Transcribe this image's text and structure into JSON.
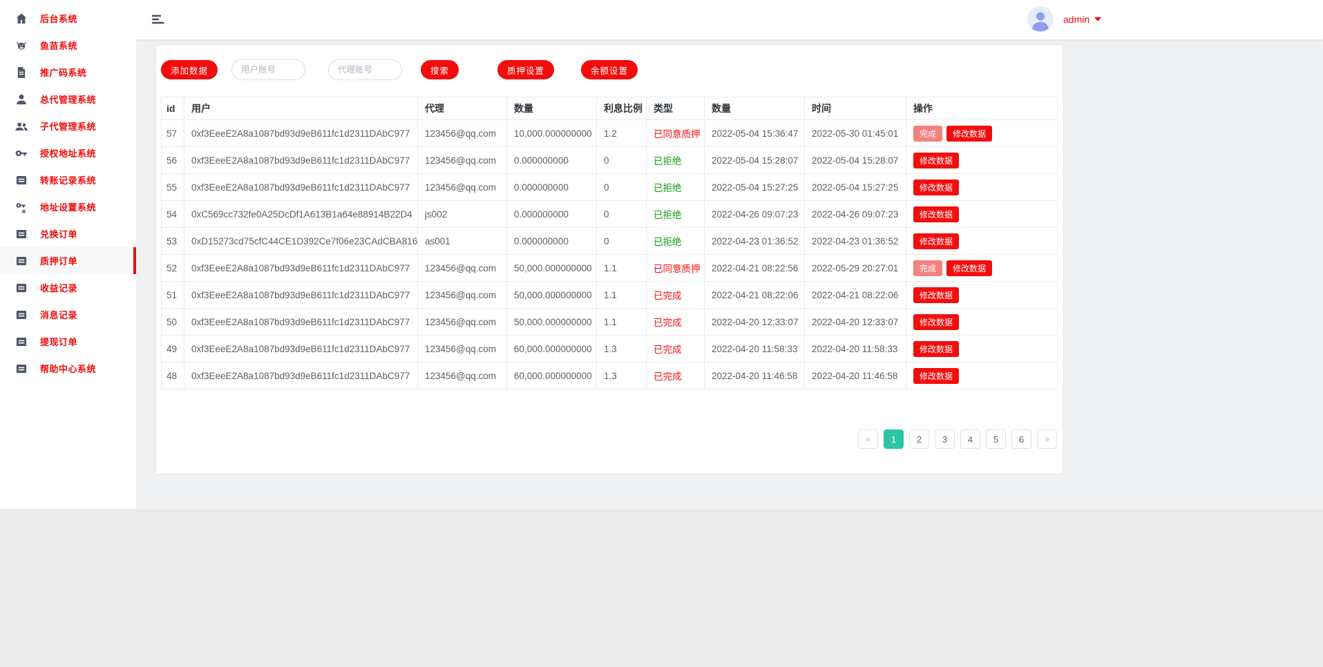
{
  "colors": {
    "accent_red": "#f40b0b",
    "status_red": "#fb0e0e",
    "status_green": "#0da00d",
    "pagination_active_teal": "#2cc5a3",
    "done_button_pink": "#f58080"
  },
  "sidebar": {
    "items": [
      {
        "label": "后台系统",
        "icon": "home-icon",
        "active": false
      },
      {
        "label": "鱼苗系统",
        "icon": "cow-icon",
        "active": false
      },
      {
        "label": "推广码系统",
        "icon": "document-icon",
        "active": false
      },
      {
        "label": "总代管理系统",
        "icon": "person-icon",
        "active": false
      },
      {
        "label": "子代管理系统",
        "icon": "people-icon",
        "active": false
      },
      {
        "label": "授权地址系统",
        "icon": "key-icon",
        "active": false
      },
      {
        "label": "转账记录系统",
        "icon": "list-icon",
        "active": false
      },
      {
        "label": "地址设置系统",
        "icon": "key-x-icon",
        "active": false
      },
      {
        "label": "兑换订单",
        "icon": "list-icon",
        "active": false
      },
      {
        "label": "质押订单",
        "icon": "list-icon",
        "active": true
      },
      {
        "label": "收益记录",
        "icon": "list-icon",
        "active": false
      },
      {
        "label": "消息记录",
        "icon": "list-icon",
        "active": false
      },
      {
        "label": "提现订单",
        "icon": "list-icon",
        "active": false
      },
      {
        "label": "帮助中心系统",
        "icon": "list-icon",
        "active": false
      }
    ]
  },
  "header": {
    "username": "admin"
  },
  "toolbar": {
    "add_button": "添加数据",
    "user_input_placeholder": "用户账号",
    "agent_input_placeholder": "代理账号",
    "search_button": "搜索",
    "pledge_settings_button": "质押设置",
    "balance_settings_button": "余额设置"
  },
  "table": {
    "columns": [
      "id",
      "用户",
      "代理",
      "数量",
      "利息比例",
      "类型",
      "数量",
      "时间",
      "操作"
    ],
    "action_labels": {
      "done": "完成",
      "edit": "修改数据"
    },
    "rows": [
      {
        "id": "57",
        "user": "0xf3EeeE2A8a1087bd93d9eB611fc1d2311DAbC977",
        "agent": "123456@qq.com",
        "amount": "10,000.000000000",
        "ratio": "1.2",
        "type": "已同意质押",
        "type_color": "red",
        "amount2": "2022-05-04 15:36:47",
        "time": "2022-05-30 01:45:01",
        "actions": [
          "done",
          "edit"
        ]
      },
      {
        "id": "56",
        "user": "0xf3EeeE2A8a1087bd93d9eB611fc1d2311DAbC977",
        "agent": "123456@qq.com",
        "amount": "0.000000000",
        "ratio": "0",
        "type": "已拒绝",
        "type_color": "green",
        "amount2": "2022-05-04 15:28:07",
        "time": "2022-05-04 15:28:07",
        "actions": [
          "edit"
        ]
      },
      {
        "id": "55",
        "user": "0xf3EeeE2A8a1087bd93d9eB611fc1d2311DAbC977",
        "agent": "123456@qq.com",
        "amount": "0.000000000",
        "ratio": "0",
        "type": "已拒绝",
        "type_color": "green",
        "amount2": "2022-05-04 15:27:25",
        "time": "2022-05-04 15:27:25",
        "actions": [
          "edit"
        ]
      },
      {
        "id": "54",
        "user": "0xC569cc732fe0A25DcDf1A613B1a64e88914B22D4",
        "agent": "js002",
        "amount": "0.000000000",
        "ratio": "0",
        "type": "已拒绝",
        "type_color": "green",
        "amount2": "2022-04-26 09:07:23",
        "time": "2022-04-26 09:07:23",
        "actions": [
          "edit"
        ]
      },
      {
        "id": "53",
        "user": "0xD15273cd75cfC44CE1D392Ce7f06e23CAdCBA816",
        "agent": "as001",
        "amount": "0.000000000",
        "ratio": "0",
        "type": "已拒绝",
        "type_color": "green",
        "amount2": "2022-04-23 01:36:52",
        "time": "2022-04-23 01:36:52",
        "actions": [
          "edit"
        ]
      },
      {
        "id": "52",
        "user": "0xf3EeeE2A8a1087bd93d9eB611fc1d2311DAbC977",
        "agent": "123456@qq.com",
        "amount": "50,000.000000000",
        "ratio": "1.1",
        "type": "已同意质押",
        "type_color": "red",
        "amount2": "2022-04-21 08:22:56",
        "time": "2022-05-29 20:27:01",
        "actions": [
          "done",
          "edit"
        ]
      },
      {
        "id": "51",
        "user": "0xf3EeeE2A8a1087bd93d9eB611fc1d2311DAbC977",
        "agent": "123456@qq.com",
        "amount": "50,000.000000000",
        "ratio": "1.1",
        "type": "已完成",
        "type_color": "red",
        "amount2": "2022-04-21 08:22:06",
        "time": "2022-04-21 08:22:06",
        "actions": [
          "edit"
        ]
      },
      {
        "id": "50",
        "user": "0xf3EeeE2A8a1087bd93d9eB611fc1d2311DAbC977",
        "agent": "123456@qq.com",
        "amount": "50,000.000000000",
        "ratio": "1.1",
        "type": "已完成",
        "type_color": "red",
        "amount2": "2022-04-20 12:33:07",
        "time": "2022-04-20 12:33:07",
        "actions": [
          "edit"
        ]
      },
      {
        "id": "49",
        "user": "0xf3EeeE2A8a1087bd93d9eB611fc1d2311DAbC977",
        "agent": "123456@qq.com",
        "amount": "60,000.000000000",
        "ratio": "1.3",
        "type": "已完成",
        "type_color": "red",
        "amount2": "2022-04-20 11:58:33",
        "time": "2022-04-20 11:58:33",
        "actions": [
          "edit"
        ]
      },
      {
        "id": "48",
        "user": "0xf3EeeE2A8a1087bd93d9eB611fc1d2311DAbC977",
        "agent": "123456@qq.com",
        "amount": "60,000.000000000",
        "ratio": "1.3",
        "type": "已完成",
        "type_color": "red",
        "amount2": "2022-04-20 11:46:58",
        "time": "2022-04-20 11:46:58",
        "actions": [
          "edit"
        ]
      }
    ]
  },
  "pagination": {
    "prev": "«",
    "next": "»",
    "pages": [
      "1",
      "2",
      "3",
      "4",
      "5",
      "6"
    ],
    "active": "1"
  }
}
